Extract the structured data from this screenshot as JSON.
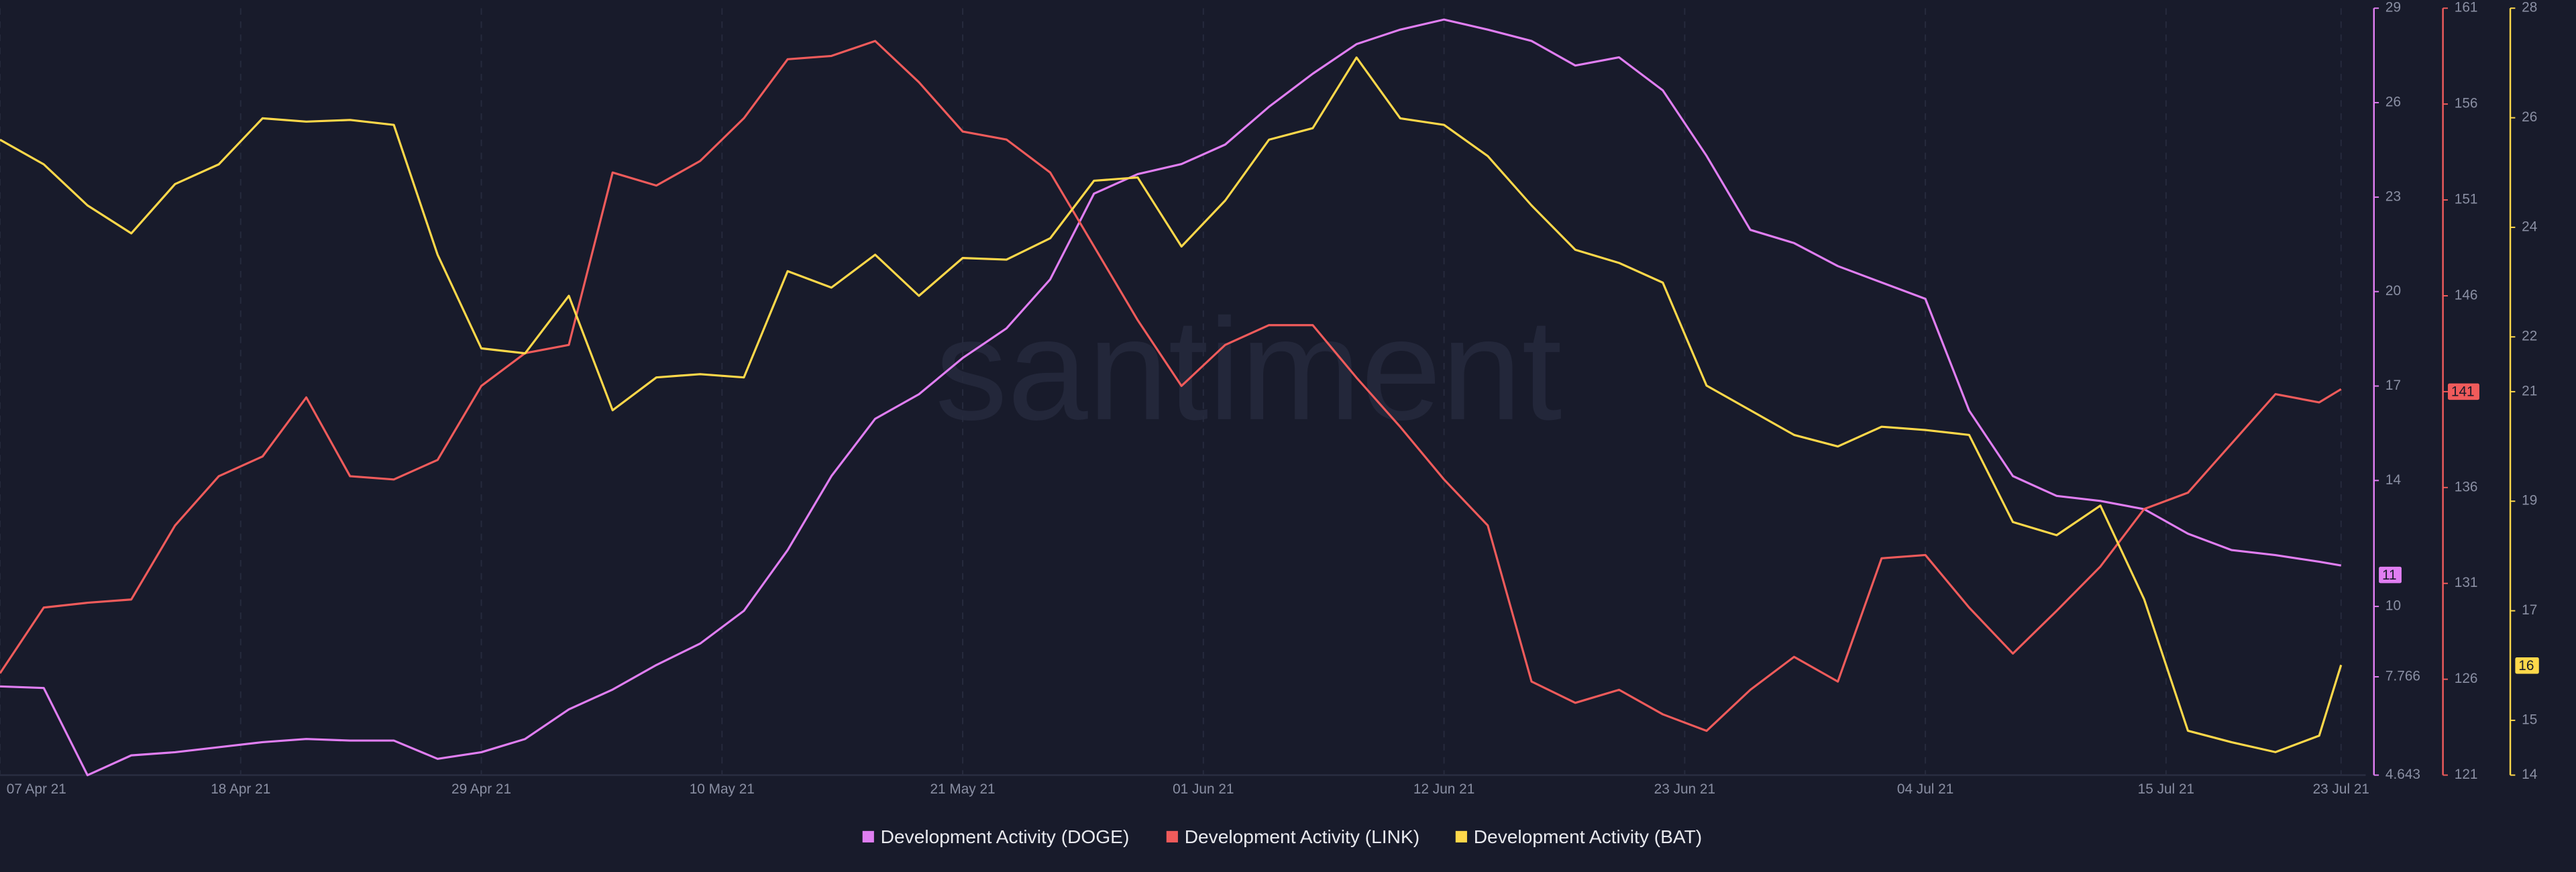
{
  "chart_data": {
    "type": "line",
    "watermark": "santiment",
    "x": [
      "07 Apr 21",
      "09 Apr 21",
      "11 Apr 21",
      "13 Apr 21",
      "15 Apr 21",
      "17 Apr 21",
      "19 Apr 21",
      "21 Apr 21",
      "23 Apr 21",
      "25 Apr 21",
      "27 Apr 21",
      "29 Apr 21",
      "01 May 21",
      "03 May 21",
      "05 May 21",
      "07 May 21",
      "09 May 21",
      "11 May 21",
      "13 May 21",
      "15 May 21",
      "17 May 21",
      "19 May 21",
      "21 May 21",
      "23 May 21",
      "25 May 21",
      "27 May 21",
      "29 May 21",
      "31 May 21",
      "02 Jun 21",
      "04 Jun 21",
      "06 Jun 21",
      "08 Jun 21",
      "10 Jun 21",
      "12 Jun 21",
      "14 Jun 21",
      "16 Jun 21",
      "18 Jun 21",
      "20 Jun 21",
      "22 Jun 21",
      "24 Jun 21",
      "26 Jun 21",
      "28 Jun 21",
      "30 Jun 21",
      "02 Jul 21",
      "04 Jul 21",
      "06 Jul 21",
      "08 Jul 21",
      "10 Jul 21",
      "12 Jul 21",
      "14 Jul 21",
      "16 Jul 21",
      "18 Jul 21",
      "20 Jul 21",
      "22 Jul 21",
      "23 Jul 21"
    ],
    "xlim": [
      "07 Apr 21",
      "23 Jul 21"
    ],
    "xticks": [
      "07 Apr 21",
      "18 Apr 21",
      "29 Apr 21",
      "10 May 21",
      "21 May 21",
      "01 Jun 21",
      "12 Jun 21",
      "23 Jun 21",
      "04 Jul 21",
      "15 Jul 21",
      "23 Jul 21"
    ],
    "grid": "x",
    "ylim": [
      4.643,
      29
    ],
    "yticks": [
      4.643,
      7.766,
      10,
      14,
      17,
      20,
      23,
      26,
      29
    ],
    "y2lim": [
      121,
      161
    ],
    "y2ticks": [
      121,
      126,
      131,
      136,
      141,
      146,
      151,
      156,
      161
    ],
    "y3lim": [
      14,
      28
    ],
    "y3ticks": [
      14,
      15,
      17,
      19,
      21,
      22,
      24,
      26,
      28
    ],
    "series": [
      {
        "name": "Development Activity (DOGE)",
        "color": "#e07ef2",
        "axis": "y",
        "badge": 11,
        "values": [
          7.46,
          7.41,
          4.64,
          5.27,
          5.37,
          5.53,
          5.69,
          5.79,
          5.74,
          5.74,
          5.16,
          5.37,
          5.79,
          6.73,
          7.36,
          8.14,
          8.82,
          9.86,
          11.79,
          14.14,
          15.96,
          16.74,
          17.89,
          18.83,
          20.39,
          23.11,
          23.73,
          24.05,
          24.67,
          25.87,
          26.92,
          27.86,
          28.32,
          28.64,
          28.32,
          27.96,
          27.18,
          27.44,
          26.39,
          24.31,
          21.96,
          21.54,
          20.81,
          20.29,
          19.77,
          16.22,
          14.14,
          13.51,
          13.35,
          13.09,
          12.31,
          11.79,
          11.63,
          11.42,
          11.3
        ]
      },
      {
        "name": "Development Activity (LINK)",
        "color": "#ef5b5b",
        "axis": "y2",
        "badge": 141,
        "values": [
          126.31,
          129.74,
          129.99,
          130.16,
          134.02,
          136.59,
          137.62,
          140.7,
          136.59,
          136.42,
          137.44,
          141.3,
          143.01,
          143.44,
          152.43,
          151.75,
          153.03,
          155.26,
          158.34,
          158.51,
          159.29,
          157.14,
          154.57,
          154.15,
          152.43,
          148.58,
          144.73,
          141.3,
          143.44,
          144.47,
          144.47,
          141.73,
          139.16,
          136.42,
          134.02,
          125.88,
          124.77,
          125.45,
          124.17,
          123.31,
          125.45,
          127.17,
          125.88,
          132.31,
          132.48,
          129.74,
          127.34,
          129.57,
          131.88,
          134.88,
          135.73,
          138.3,
          140.87,
          140.44,
          141.13
        ]
      },
      {
        "name": "Development Activity (BAT)",
        "color": "#ffd84a",
        "axis": "y3",
        "badge": 16,
        "values": [
          25.6,
          25.15,
          24.4,
          23.89,
          24.79,
          25.15,
          25.99,
          25.93,
          25.96,
          25.87,
          23.5,
          21.79,
          21.7,
          22.75,
          20.66,
          21.26,
          21.32,
          21.26,
          23.2,
          22.9,
          23.5,
          22.75,
          23.44,
          23.41,
          23.8,
          24.85,
          24.91,
          23.65,
          24.49,
          25.6,
          25.81,
          27.1,
          25.99,
          25.87,
          25.3,
          24.4,
          23.59,
          23.35,
          22.99,
          21.11,
          20.66,
          20.21,
          20.0,
          20.36,
          20.3,
          20.21,
          18.62,
          18.38,
          18.92,
          17.21,
          14.81,
          14.6,
          14.42,
          14.72,
          16.01
        ]
      }
    ]
  }
}
